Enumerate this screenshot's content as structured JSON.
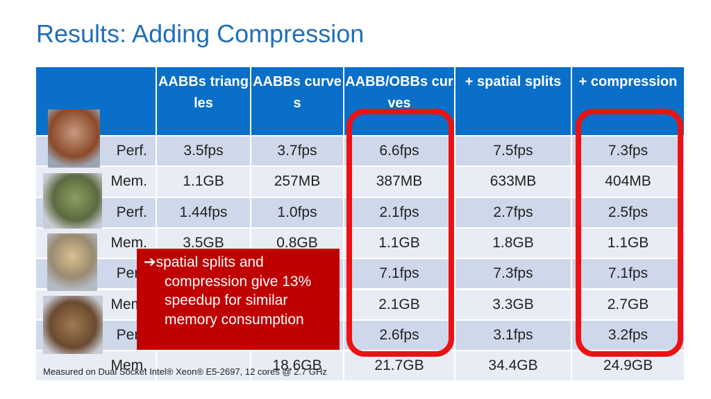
{
  "title": "Results: Adding Compression",
  "table": {
    "header": [
      "AABBs triangles",
      "AABBs curves",
      "AABB/OBBs curves",
      "+ spatial splits",
      "+ compression"
    ],
    "rows": [
      [
        "Perf.",
        "3.5fps",
        "3.7fps",
        "6.6fps",
        "7.5fps",
        "7.3fps"
      ],
      [
        "Mem.",
        "1.1GB",
        "257MB",
        "387MB",
        "633MB",
        "404MB"
      ],
      [
        "Perf.",
        "1.44fps",
        "1.0fps",
        "2.1fps",
        "2.7fps",
        "2.5fps"
      ],
      [
        "Mem.",
        "3.5GB",
        "0.8GB",
        "1.1GB",
        "1.8GB",
        "1.1GB"
      ],
      [
        "Perf.",
        null,
        null,
        "7.1fps",
        "7.3fps",
        "7.1fps"
      ],
      [
        "Mem.",
        null,
        null,
        "2.1GB",
        "3.3GB",
        "2.7GB"
      ],
      [
        "Perf.",
        null,
        null,
        "2.6fps",
        "3.1fps",
        "3.2fps"
      ],
      [
        "Mem.",
        null,
        "18.6GB",
        "21.7GB",
        "34.4GB",
        "24.9GB"
      ]
    ]
  },
  "callout": "➔spatial splits and compression give 13% speedup for similar memory consumption",
  "footnote": "Measured on Dual Socket Intel® Xeon® E5-2697, 12 cores @ 2.7 GHz"
}
